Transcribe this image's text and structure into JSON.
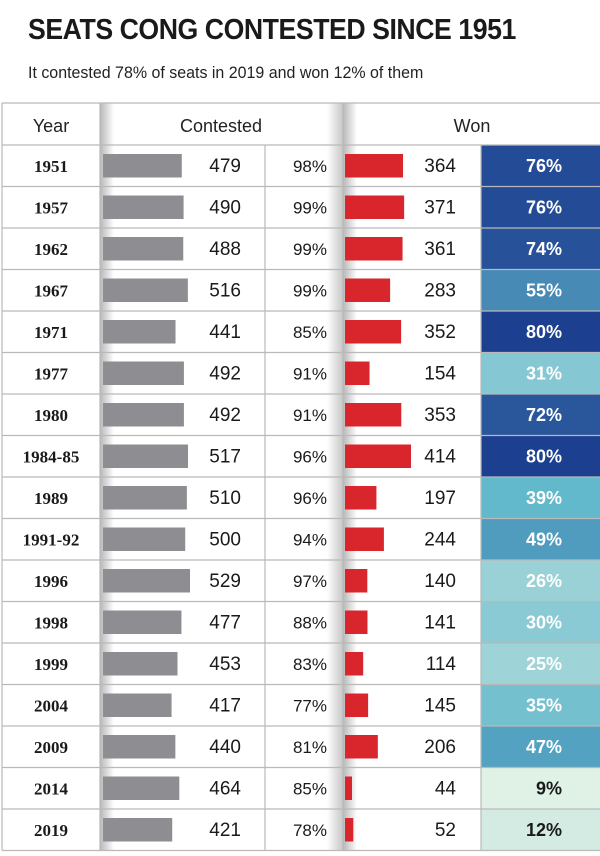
{
  "header": {
    "title": "SEATS CONG CONTESTED SINCE 1951",
    "subtitle": "It contested 78% of seats in 2019 and won 12% of them"
  },
  "chart_data": {
    "type": "table",
    "title": "SEATS CONG CONTESTED SINCE 1951",
    "subtitle": "It contested 78% of seats in 2019 and won 12% of them",
    "columns": [
      "Year",
      "Contested",
      "Won"
    ],
    "rows": [
      {
        "year": "1951",
        "contested": 479,
        "contested_pct": "98%",
        "won": 364,
        "won_pct": "76%"
      },
      {
        "year": "1957",
        "contested": 490,
        "contested_pct": "99%",
        "won": 371,
        "won_pct": "76%"
      },
      {
        "year": "1962",
        "contested": 488,
        "contested_pct": "99%",
        "won": 361,
        "won_pct": "74%"
      },
      {
        "year": "1967",
        "contested": 516,
        "contested_pct": "99%",
        "won": 283,
        "won_pct": "55%"
      },
      {
        "year": "1971",
        "contested": 441,
        "contested_pct": "85%",
        "won": 352,
        "won_pct": "80%"
      },
      {
        "year": "1977",
        "contested": 492,
        "contested_pct": "91%",
        "won": 154,
        "won_pct": "31%"
      },
      {
        "year": "1980",
        "contested": 492,
        "contested_pct": "91%",
        "won": 353,
        "won_pct": "72%"
      },
      {
        "year": "1984-85",
        "contested": 517,
        "contested_pct": "96%",
        "won": 414,
        "won_pct": "80%"
      },
      {
        "year": "1989",
        "contested": 510,
        "contested_pct": "96%",
        "won": 197,
        "won_pct": "39%"
      },
      {
        "year": "1991-92",
        "contested": 500,
        "contested_pct": "94%",
        "won": 244,
        "won_pct": "49%"
      },
      {
        "year": "1996",
        "contested": 529,
        "contested_pct": "97%",
        "won": 140,
        "won_pct": "26%"
      },
      {
        "year": "1998",
        "contested": 477,
        "contested_pct": "88%",
        "won": 141,
        "won_pct": "30%"
      },
      {
        "year": "1999",
        "contested": 453,
        "contested_pct": "83%",
        "won": 114,
        "won_pct": "25%"
      },
      {
        "year": "2004",
        "contested": 417,
        "contested_pct": "77%",
        "won": 145,
        "won_pct": "35%"
      },
      {
        "year": "2009",
        "contested": 440,
        "contested_pct": "81%",
        "won": 206,
        "won_pct": "47%"
      },
      {
        "year": "2014",
        "contested": 464,
        "contested_pct": "85%",
        "won": 44,
        "won_pct": "9%"
      },
      {
        "year": "2019",
        "contested": 421,
        "contested_pct": "78%",
        "won": 52,
        "won_pct": "12%"
      }
    ],
    "colors": {
      "contested_bar": "#8e8d92",
      "won_bar": "#d9262c",
      "grid": "#b9b9b9",
      "scale_light": "#f1f8e9",
      "scale_mid": "#5fb7cb",
      "scale_dark": "#1d3f8f"
    }
  }
}
